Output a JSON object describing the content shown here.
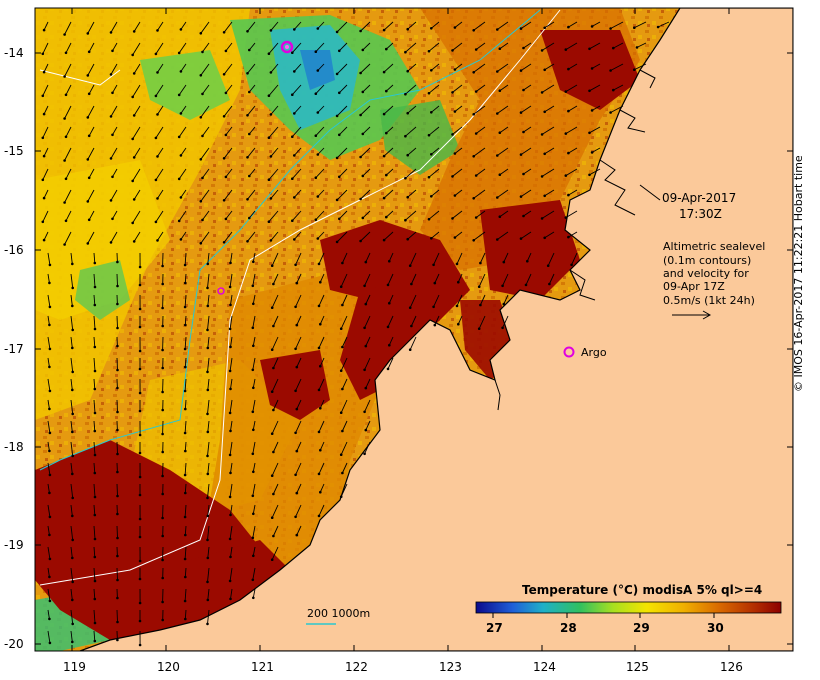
{
  "map": {
    "date": "09-Apr-2017",
    "time": "17:30Z",
    "sealevel_note": [
      "Altimetric sealevel",
      "(0.1m contours)",
      "and velocity for",
      "09-Apr 17Z",
      "0.5m/s (1kt 24h)"
    ],
    "argo_label": "Argo",
    "bathy_label": "200  1000m",
    "colorbar": {
      "title": "Temperature (°C) modisA 5% ql>=4",
      "ticks": [
        "27",
        "28",
        "29",
        "30"
      ]
    },
    "credit": "© IMOS 16-Apr-2017 11:22:21 Hobart time",
    "lat_ticks": [
      "-14",
      "-15",
      "-16",
      "-17",
      "-18",
      "-19",
      "-20"
    ],
    "lon_ticks": [
      "119",
      "120",
      "121",
      "122",
      "123",
      "124",
      "125",
      "126"
    ],
    "colors": {
      "land": "#fbc99a",
      "warm": "#9b0a00",
      "mid": "#e08a00",
      "cool": "#f2c800",
      "green": "#5cc84a",
      "cyan": "#2ab8c8",
      "argo": "#e000e0"
    }
  }
}
